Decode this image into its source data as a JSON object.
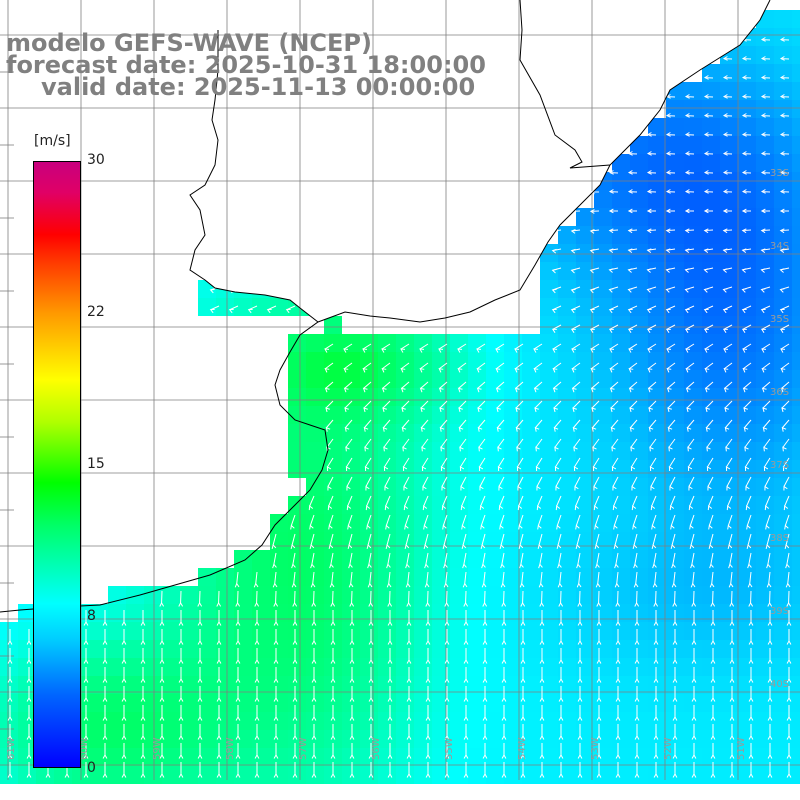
{
  "title": {
    "line1": "modelo GEFS-WAVE (NCEP)",
    "line2": "forecast date: 2025-10-31 18:00:00",
    "line3": "valid date: 2025-11-13 00:00:00"
  },
  "colorbar": {
    "unit": "[m/s]",
    "ticks": [
      "30",
      "22",
      "15",
      "8",
      "0"
    ],
    "min": 0,
    "max": 30,
    "colors": [
      "#0000ff",
      "#0066ff",
      "#00ccff",
      "#00ffff",
      "#00ff66",
      "#00ff00",
      "#b0ff00",
      "#ffff00",
      "#ff9900",
      "#ff3300",
      "#ff0000",
      "#c8007e"
    ]
  },
  "lat_labels": [
    "33S",
    "34S",
    "35S",
    "36S",
    "37S",
    "38S",
    "39S",
    "40S"
  ],
  "lon_labels": [
    "61W",
    "60W",
    "59W",
    "58W",
    "57W",
    "56W",
    "55W",
    "54W",
    "53W",
    "52W",
    "51W"
  ],
  "colors": {
    "land": "#ffffff",
    "coast": "#000000",
    "grid": "#7f7f7f",
    "label": "#9a9a9a",
    "arrow": "#ffffff"
  }
}
